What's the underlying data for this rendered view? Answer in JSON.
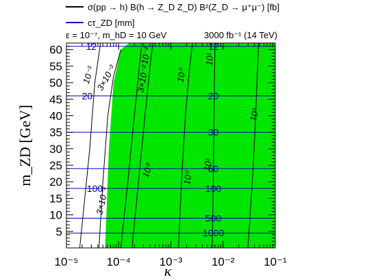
{
  "legend": {
    "line1": "σ(pp → h) B(h → Z_D Z_D) B²(Z_D → μ⁺μ⁻) [fb]",
    "line2": "cτ_ZD [mm]",
    "line3": "ε = 10⁻⁷, m_hD = 10 GeV",
    "line4": "3000 fb⁻¹ (14 TeV)",
    "line1_color": "#000000",
    "line2_color": "#0000c0"
  },
  "chart_data": {
    "type": "contour",
    "title": "",
    "xlabel": "κ",
    "ylabel": "m_ZD [GeV]",
    "x_scale": "log",
    "xlim": [
      1e-05,
      0.1
    ],
    "ylim": [
      0,
      62
    ],
    "x_ticks": [
      "10⁻⁵",
      "10⁻⁴",
      "10⁻³",
      "10⁻²",
      "10⁻¹"
    ],
    "y_ticks": [
      "5",
      "10",
      "15",
      "20",
      "25",
      "30",
      "35",
      "40",
      "45",
      "50",
      "55",
      "60"
    ],
    "grid": false,
    "excluded_region_color": "#00e600",
    "excluded_region": [
      {
        "x": 5.5e-05,
        "y": 0
      },
      {
        "x": 6e-05,
        "y": 15
      },
      {
        "x": 6.5e-05,
        "y": 30
      },
      {
        "x": 8e-05,
        "y": 50
      },
      {
        "x": 0.00011,
        "y": 60
      },
      {
        "x": 0.00016,
        "y": 62
      }
    ],
    "sigma_contours": [
      {
        "label": "10⁻³",
        "points": [
          {
            "x": 1.8e-05,
            "y": 0
          },
          {
            "x": 2.8e-05,
            "y": 30
          },
          {
            "x": 3.5e-05,
            "y": 50
          },
          {
            "x": 4.5e-05,
            "y": 62
          }
        ]
      },
      {
        "label": "3×10⁻³",
        "points": [
          {
            "x": 4.2e-05,
            "y": 0
          },
          {
            "x": 5e-05,
            "y": 20
          },
          {
            "x": 6.2e-05,
            "y": 40
          },
          {
            "x": 8e-05,
            "y": 52
          },
          {
            "x": 0.00011,
            "y": 60
          }
        ]
      },
      {
        "label": "3×10⁻²",
        "points": [
          {
            "x": 0.00018,
            "y": 0
          },
          {
            "x": 0.00024,
            "y": 20
          },
          {
            "x": 0.00032,
            "y": 40
          },
          {
            "x": 0.0004,
            "y": 55
          },
          {
            "x": 0.00045,
            "y": 62
          }
        ]
      },
      {
        "label": "10⁻²",
        "points": [
          {
            "x": 0.00011,
            "y": 0
          },
          {
            "x": 0.00015,
            "y": 20
          },
          {
            "x": 0.0002,
            "y": 40
          },
          {
            "x": 0.00025,
            "y": 55
          },
          {
            "x": 0.00028,
            "y": 62
          }
        ]
      },
      {
        "label": "10⁰",
        "points": [
          {
            "x": 0.0014,
            "y": 0
          },
          {
            "x": 0.0016,
            "y": 20
          },
          {
            "x": 0.0019,
            "y": 40
          },
          {
            "x": 0.0023,
            "y": 55
          },
          {
            "x": 0.0026,
            "y": 62
          }
        ]
      },
      {
        "label": "10¹",
        "points": [
          {
            "x": 0.0062,
            "y": 0
          },
          {
            "x": 0.0065,
            "y": 20
          },
          {
            "x": 0.0067,
            "y": 40
          },
          {
            "x": 0.0069,
            "y": 55
          },
          {
            "x": 0.007,
            "y": 62
          }
        ]
      },
      {
        "label": "10²",
        "points": [
          {
            "x": 0.03,
            "y": 0
          },
          {
            "x": 0.033,
            "y": 10
          },
          {
            "x": 0.038,
            "y": 25
          },
          {
            "x": 0.042,
            "y": 40
          },
          {
            "x": 0.048,
            "y": 62
          }
        ]
      }
    ],
    "ctau_contours": [
      {
        "label": "12",
        "y": 61
      },
      {
        "label": "20",
        "y": 46
      },
      {
        "label": "30",
        "y": 35
      },
      {
        "label": "50",
        "y": 24
      },
      {
        "label": "100",
        "y": 18
      },
      {
        "label": "500",
        "y": 9
      },
      {
        "label": "1000",
        "y": 4.5
      }
    ],
    "inline_labels": [
      {
        "text": "10⁻³",
        "x": 3e-05,
        "y": 52,
        "angle": -72
      },
      {
        "text": "3×10⁻³",
        "x": 6.5e-05,
        "y": 51,
        "angle": -60
      },
      {
        "text": "3×10⁻³",
        "x": 5.5e-05,
        "y": 14,
        "angle": -78
      },
      {
        "text": "3×10⁻²",
        "x": 0.00033,
        "y": 51,
        "angle": -80
      },
      {
        "text": "10⁻²",
        "x": 0.00038,
        "y": 58,
        "angle": -80
      },
      {
        "text": "10⁰",
        "x": 0.0018,
        "y": 52,
        "angle": -80
      },
      {
        "text": "10⁰",
        "x": 0.0004,
        "y": 23,
        "angle": -70
      },
      {
        "text": "10¹",
        "x": 0.0063,
        "y": 57,
        "angle": -85
      },
      {
        "text": "10¹",
        "x": 0.0058,
        "y": 25,
        "angle": -80
      },
      {
        "text": "10⁰",
        "x": 0.0024,
        "y": 21,
        "angle": -82
      },
      {
        "text": "10²",
        "x": 0.045,
        "y": 40,
        "angle": -75
      }
    ]
  }
}
